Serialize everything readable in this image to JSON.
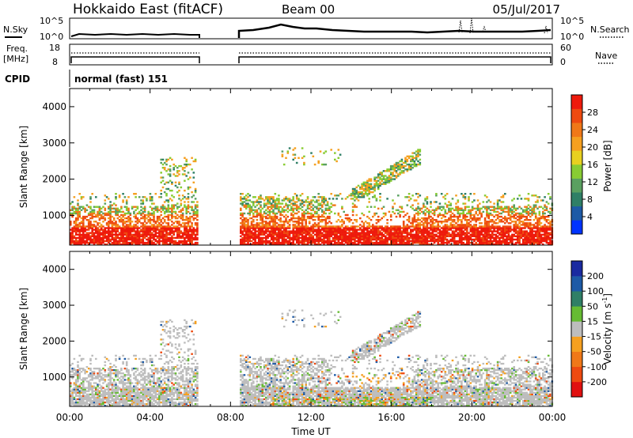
{
  "header": {
    "title": "Hokkaido East (fitACF)",
    "beam": "Beam 00",
    "date": "05/Jul/2017"
  },
  "top_panels": {
    "nsky_label": "N.Sky",
    "nsky_ticks": [
      "10^5",
      "10^0"
    ],
    "nsearch_label": "N.Search",
    "nsearch_ticks": [
      "10^5",
      "10^0"
    ],
    "freq_label_1": "Freq.",
    "freq_label_2": "[MHz]",
    "freq_ticks": [
      "18",
      "8"
    ],
    "nave_label": "Nave",
    "nave_ticks": [
      "60",
      "0"
    ],
    "cpid_label": "CPID",
    "cpid_text": "normal (fast) 151"
  },
  "chart_data": [
    {
      "type": "heatmap",
      "name": "power",
      "ylabel": "Slant Range [km]",
      "yticks": [
        "1000",
        "2000",
        "3000",
        "4000"
      ],
      "ylim": [
        180,
        4500
      ],
      "xlim": [
        0,
        24
      ],
      "colorbar_label": "Power [dB]",
      "colorbar_ticks": [
        "4",
        "8",
        "12",
        "16",
        "20",
        "24",
        "28"
      ],
      "colors": [
        "#0033ff",
        "#1d5aa6",
        "#2f7f66",
        "#5aa060",
        "#88cc33",
        "#e8d020",
        "#f5a020",
        "#f07818",
        "#ee4a10",
        "#ee1a0c"
      ],
      "data_gap_hours": [
        6.4,
        8.5
      ],
      "echo_regions": [
        {
          "t0": 0.0,
          "t1": 6.3,
          "r0": 300,
          "r1": 1200,
          "intensity": "high"
        },
        {
          "t0": 8.5,
          "t1": 14.0,
          "r0": 300,
          "r1": 1500,
          "intensity": "high"
        },
        {
          "t0": 14.0,
          "t1": 18.5,
          "r0": 1500,
          "r1": 2700,
          "intensity": "medium"
        },
        {
          "t0": 18.5,
          "t1": 24.0,
          "r0": 300,
          "r1": 1200,
          "intensity": "high"
        }
      ]
    },
    {
      "type": "heatmap",
      "name": "velocity",
      "ylabel": "Slant Range [km]",
      "yticks": [
        "1000",
        "2000",
        "3000",
        "4000"
      ],
      "ylim": [
        180,
        4500
      ],
      "xlim": [
        0,
        24
      ],
      "xlabel": "Time UT",
      "xticks": [
        "00:00",
        "04:00",
        "08:00",
        "12:00",
        "16:00",
        "20:00",
        "00:00"
      ],
      "colorbar_label_main": "Velocity [m s",
      "colorbar_label_sup": "-1",
      "colorbar_label_end": "]",
      "colorbar_ticks": [
        "200",
        "100",
        "50",
        "15",
        "-15",
        "-50",
        "-100",
        "-200"
      ],
      "colors": [
        "#1a2aa0",
        "#1d5aa6",
        "#2f7f66",
        "#66bb33",
        "#bdbdbd",
        "#f5a020",
        "#f07818",
        "#ee4a10",
        "#e11010"
      ],
      "ground_scatter_color": "#bdbdbd"
    }
  ]
}
